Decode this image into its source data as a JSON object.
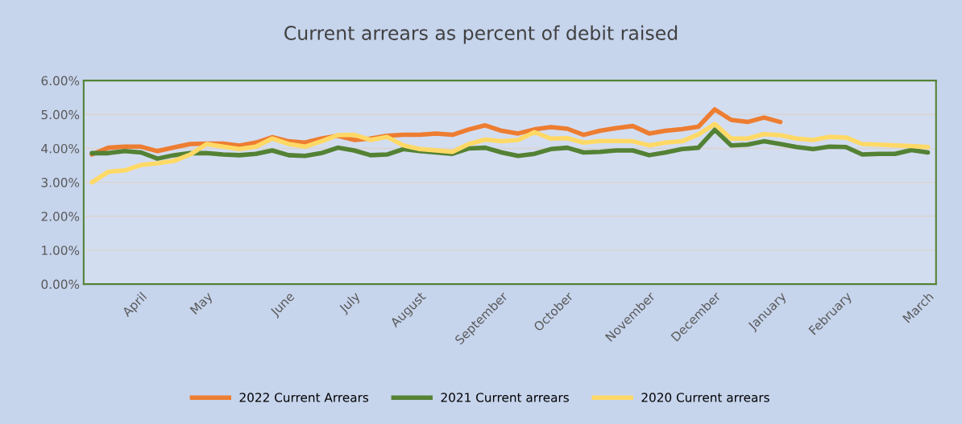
{
  "chart_data": {
    "type": "line",
    "title": "Current arrears as percent of debit raised",
    "categories": [
      null,
      null,
      null,
      "April",
      null,
      null,
      null,
      "May",
      null,
      null,
      null,
      null,
      "June",
      null,
      null,
      null,
      "July",
      null,
      null,
      null,
      "August",
      null,
      null,
      null,
      null,
      "September",
      null,
      null,
      null,
      "October",
      null,
      null,
      null,
      null,
      "November",
      null,
      null,
      null,
      "December",
      null,
      null,
      null,
      "January",
      null,
      null,
      null,
      "February",
      null,
      null,
      null,
      null,
      "March"
    ],
    "ylim": [
      0,
      6
    ],
    "yticks": [
      {
        "value": 0,
        "label": "0.00%"
      },
      {
        "value": 1,
        "label": "1.00%"
      },
      {
        "value": 2,
        "label": "2.00%"
      },
      {
        "value": 3,
        "label": "3.00%"
      },
      {
        "value": 4,
        "label": "4.00%"
      },
      {
        "value": 5,
        "label": "5.00%"
      },
      {
        "value": 6,
        "label": "6.00%"
      }
    ],
    "grid": "y",
    "legend": "bottom",
    "marker": "none",
    "line_style": "solid",
    "series": [
      {
        "name": "2022 Current Arrears",
        "color": "#ed7d31",
        "values": [
          3.82,
          4.02,
          4.05,
          4.05,
          3.92,
          4.03,
          4.13,
          4.14,
          4.14,
          4.08,
          4.17,
          4.33,
          4.21,
          4.17,
          4.29,
          4.37,
          4.25,
          4.29,
          4.37,
          4.4,
          4.4,
          4.44,
          4.4,
          4.56,
          4.68,
          4.52,
          4.44,
          4.56,
          4.63,
          4.58,
          4.4,
          4.52,
          4.6,
          4.66,
          4.44,
          4.52,
          4.57,
          4.64,
          5.15,
          4.84,
          4.78,
          4.91,
          4.78,
          null,
          null,
          null,
          null,
          null,
          null,
          null,
          null,
          null
        ]
      },
      {
        "name": "2021 Current arrears",
        "color": "#548235",
        "values": [
          3.86,
          3.86,
          3.92,
          3.88,
          3.7,
          3.8,
          3.86,
          3.86,
          3.82,
          3.8,
          3.84,
          3.94,
          3.8,
          3.78,
          3.86,
          4.02,
          3.94,
          3.8,
          3.82,
          3.98,
          3.92,
          3.88,
          3.84,
          4.0,
          4.02,
          3.88,
          3.78,
          3.84,
          3.98,
          4.02,
          3.88,
          3.9,
          3.94,
          3.94,
          3.8,
          3.88,
          3.98,
          4.02,
          4.55,
          4.09,
          4.11,
          4.21,
          4.13,
          4.04,
          3.98,
          4.05,
          4.04,
          3.82,
          3.84,
          3.84,
          3.95,
          3.88
        ]
      },
      {
        "name": "2020 Current arrears",
        "color": "#ffd966",
        "values": [
          3.0,
          3.31,
          3.35,
          3.51,
          3.56,
          3.63,
          3.82,
          4.13,
          4.05,
          3.98,
          4.05,
          4.29,
          4.13,
          4.05,
          4.21,
          4.39,
          4.4,
          4.25,
          4.34,
          4.09,
          3.98,
          3.94,
          3.9,
          4.13,
          4.26,
          4.21,
          4.25,
          4.48,
          4.29,
          4.3,
          4.17,
          4.22,
          4.22,
          4.21,
          4.09,
          4.17,
          4.21,
          4.41,
          4.72,
          4.29,
          4.29,
          4.42,
          4.39,
          4.29,
          4.25,
          4.34,
          4.32,
          4.13,
          4.11,
          4.09,
          4.07,
          4.04
        ]
      }
    ]
  }
}
